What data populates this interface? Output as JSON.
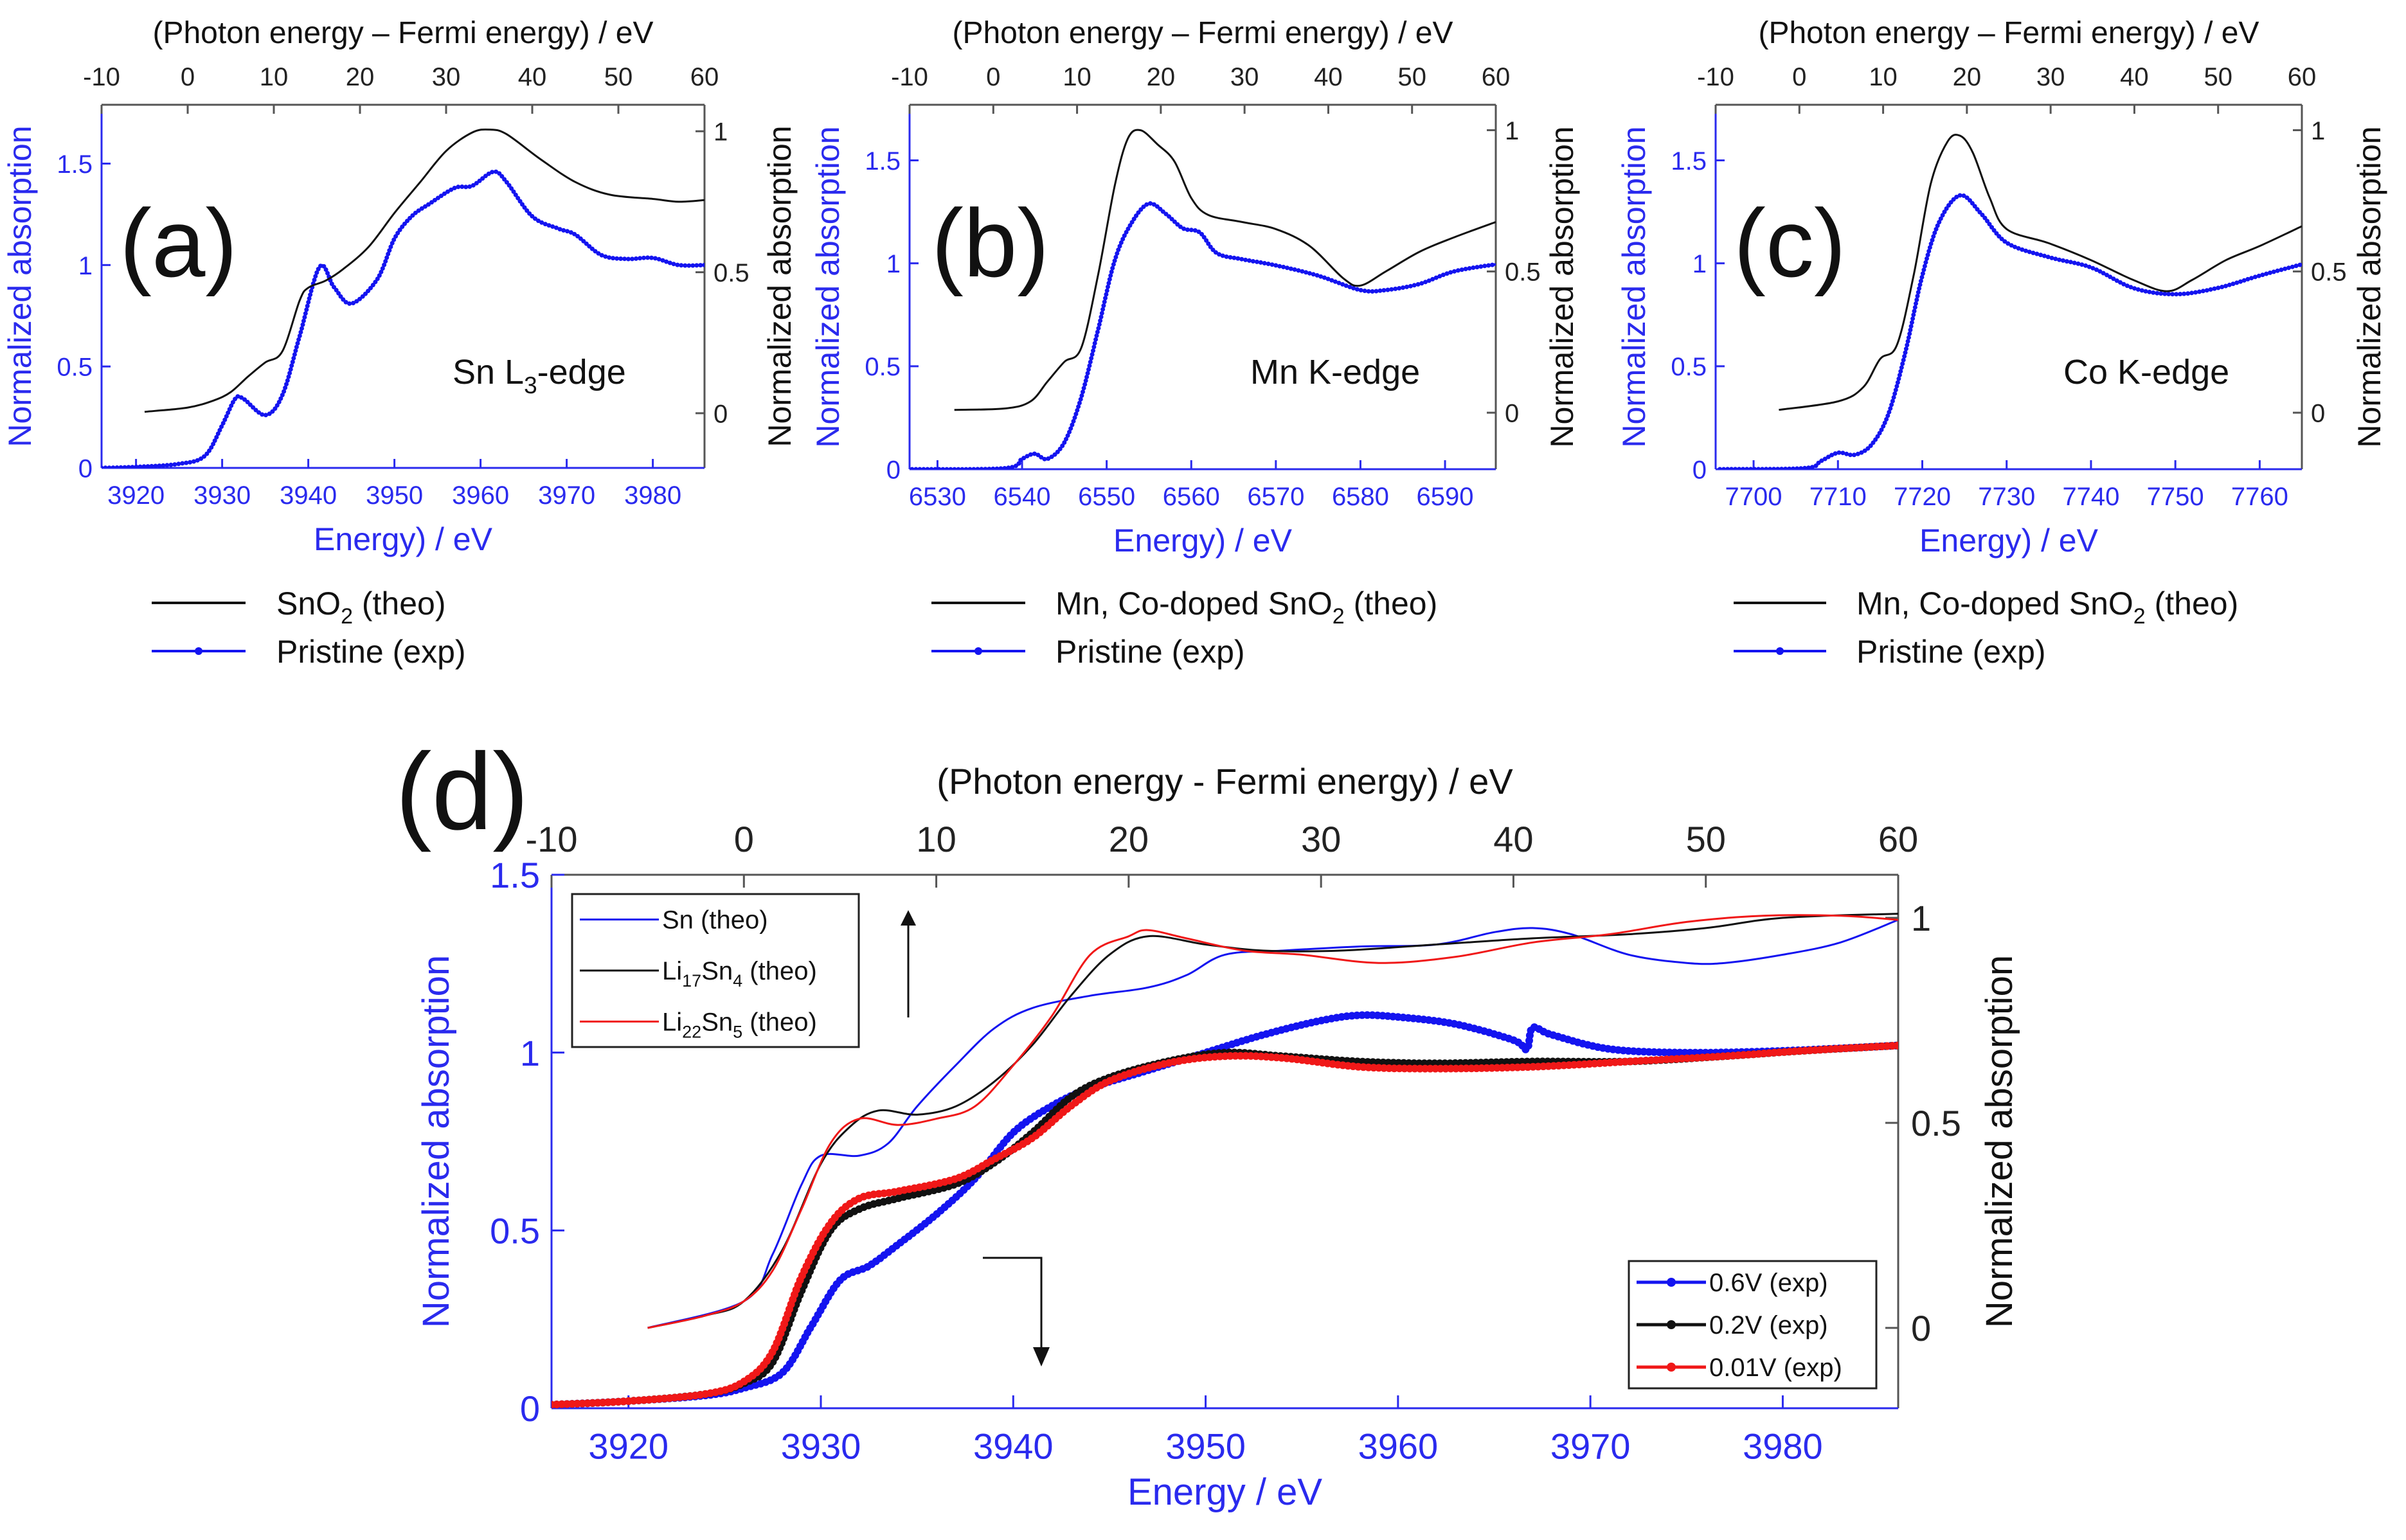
{
  "colors": {
    "blue": "#1414f0",
    "black": "#111111",
    "red": "#f01818",
    "axis_blue": "#2a2aee",
    "axis_gray": "#555555"
  },
  "chart_data": [
    {
      "id": "a",
      "type": "line",
      "panel_label": "(a)",
      "edge_label": [
        {
          "t": "Sn L"
        },
        {
          "t": "3",
          "sub": true
        },
        {
          "t": "-edge"
        }
      ],
      "top_axis": {
        "label": "(Photon energy – Fermi energy)  / eV",
        "range": [
          -10,
          60
        ],
        "ticks": [
          -10,
          0,
          10,
          20,
          30,
          40,
          50,
          60
        ]
      },
      "xlabel": "Energy) / eV",
      "xlim": [
        3916,
        3986
      ],
      "xticks": [
        3920,
        3930,
        3940,
        3950,
        3960,
        3970,
        3980
      ],
      "ylabel_left": "Normalized absorption",
      "ylim_left": [
        0,
        1.79
      ],
      "yticks_left": [
        0,
        0.5,
        1,
        1.5
      ],
      "ylabel_right": "Normalized absorption",
      "ylim_right": [
        -0.194,
        1.094
      ],
      "yticks_right": [
        0,
        0.5,
        1
      ],
      "legend_position": "below",
      "series": [
        {
          "name": [
            {
              "t": "SnO"
            },
            {
              "t": "2",
              "sub": true
            },
            {
              "t": " (theo)"
            }
          ],
          "axis": "right",
          "color": "#111111",
          "marker": false,
          "x": [
            3921,
            3926,
            3929,
            3931,
            3933,
            3935,
            3937,
            3939,
            3940,
            3942,
            3944,
            3947,
            3950,
            3953,
            3956,
            3959,
            3961,
            3963,
            3967,
            3971,
            3975,
            3980,
            3983,
            3986
          ],
          "y": [
            0.005,
            0.02,
            0.045,
            0.075,
            0.13,
            0.18,
            0.22,
            0.4,
            0.445,
            0.47,
            0.51,
            0.59,
            0.71,
            0.82,
            0.93,
            0.995,
            1.006,
            0.99,
            0.9,
            0.82,
            0.775,
            0.76,
            0.75,
            0.756
          ]
        },
        {
          "name": [
            {
              "t": "Pristine (exp)"
            }
          ],
          "axis": "left",
          "color": "#1414f0",
          "marker": true,
          "x": [
            3916,
            3920,
            3925,
            3928,
            3930,
            3931.5,
            3932.5,
            3935,
            3937,
            3939,
            3941.3,
            3943,
            3945,
            3948,
            3950,
            3952,
            3954,
            3957,
            3959,
            3961.5,
            3963,
            3966,
            3969,
            3971,
            3974,
            3977,
            3980,
            3983,
            3986
          ],
          "y": [
            0.0,
            0.005,
            0.02,
            0.06,
            0.21,
            0.34,
            0.34,
            0.26,
            0.36,
            0.65,
            0.99,
            0.89,
            0.81,
            0.93,
            1.13,
            1.24,
            1.3,
            1.38,
            1.39,
            1.46,
            1.41,
            1.24,
            1.18,
            1.15,
            1.05,
            1.03,
            1.035,
            1.0,
            1.0
          ]
        }
      ]
    },
    {
      "id": "b",
      "type": "line",
      "panel_label": "(b)",
      "edge_label": [
        {
          "t": "Mn K-edge"
        }
      ],
      "top_axis": {
        "label": "(Photon energy – Fermi energy)  / eV",
        "range": [
          -10,
          60
        ],
        "ticks": [
          -10,
          0,
          10,
          20,
          30,
          40,
          50,
          60
        ]
      },
      "xlabel": "Energy) / eV",
      "xlim": [
        6526.7,
        6596
      ],
      "xticks": [
        6530,
        6540,
        6550,
        6560,
        6570,
        6580,
        6590
      ],
      "ylabel_left": "Normalized absorption",
      "ylim_left": [
        0,
        1.77
      ],
      "yticks_left": [
        0,
        0.5,
        1,
        1.5
      ],
      "ylabel_right": "Normalized absorption",
      "ylim_right": [
        -0.2,
        1.09
      ],
      "yticks_right": [
        0,
        0.5,
        1
      ],
      "legend_position": "below",
      "series": [
        {
          "name": [
            {
              "t": "Mn, Co-doped SnO"
            },
            {
              "t": "2",
              "sub": true
            },
            {
              "t": " (theo)"
            }
          ],
          "axis": "right",
          "color": "#111111",
          "marker": false,
          "x": [
            6532,
            6538,
            6541,
            6543,
            6545,
            6547,
            6549,
            6551,
            6552.5,
            6554,
            6556,
            6558,
            6560,
            6562,
            6566,
            6570,
            6574,
            6578,
            6580,
            6583,
            6587,
            6591,
            6596
          ],
          "y": [
            0.01,
            0.015,
            0.04,
            0.11,
            0.18,
            0.23,
            0.49,
            0.81,
            0.97,
            1.0,
            0.95,
            0.89,
            0.76,
            0.7,
            0.675,
            0.65,
            0.59,
            0.475,
            0.45,
            0.5,
            0.57,
            0.62,
            0.675
          ]
        },
        {
          "name": [
            {
              "t": "Pristine (exp)"
            }
          ],
          "axis": "left",
          "color": "#1414f0",
          "marker": true,
          "x": [
            6527,
            6538,
            6540,
            6541.5,
            6543,
            6545,
            6547,
            6549,
            6551,
            6553,
            6555,
            6557,
            6559,
            6561,
            6563,
            6566,
            6570,
            6575,
            6580,
            6583,
            6587,
            6591,
            6596
          ],
          "y": [
            0.0,
            0.005,
            0.05,
            0.075,
            0.05,
            0.13,
            0.35,
            0.68,
            1.02,
            1.2,
            1.29,
            1.24,
            1.17,
            1.15,
            1.05,
            1.02,
            0.99,
            0.94,
            0.87,
            0.87,
            0.9,
            0.96,
            0.995
          ]
        }
      ]
    },
    {
      "id": "c",
      "type": "line",
      "panel_label": "(c)",
      "edge_label": [
        {
          "t": "Co K-edge"
        }
      ],
      "top_axis": {
        "label": "(Photon energy – Fermi energy)  / eV",
        "range": [
          -10,
          60
        ],
        "ticks": [
          -10,
          0,
          10,
          20,
          30,
          40,
          50,
          60
        ]
      },
      "xlabel": "Energy) / eV",
      "xlim": [
        7695.5,
        7765
      ],
      "xticks": [
        7700,
        7710,
        7720,
        7730,
        7740,
        7750,
        7760
      ],
      "ylabel_left": "Normalized absorption",
      "ylim_left": [
        0,
        1.77
      ],
      "yticks_left": [
        0,
        0.5,
        1,
        1.5
      ],
      "ylabel_right": "Normalized absorption",
      "ylim_right": [
        -0.2,
        1.09
      ],
      "yticks_right": [
        0,
        0.5,
        1
      ],
      "legend_position": "below",
      "series": [
        {
          "name": [
            {
              "t": "Mn, Co-doped SnO"
            },
            {
              "t": "2",
              "sub": true
            },
            {
              "t": " (theo)"
            }
          ],
          "axis": "right",
          "color": "#111111",
          "marker": false,
          "x": [
            7703,
            7710,
            7713,
            7715,
            7717,
            7719,
            7721,
            7723,
            7724.5,
            7726,
            7728,
            7730,
            7735,
            7740,
            7745,
            7749,
            7752,
            7756,
            7760,
            7765
          ],
          "y": [
            0.01,
            0.04,
            0.09,
            0.19,
            0.24,
            0.49,
            0.81,
            0.96,
            0.98,
            0.92,
            0.76,
            0.65,
            0.6,
            0.54,
            0.47,
            0.43,
            0.47,
            0.54,
            0.59,
            0.66
          ]
        },
        {
          "name": [
            {
              "t": "Pristine (exp)"
            }
          ],
          "axis": "left",
          "color": "#1414f0",
          "marker": true,
          "x": [
            7696,
            7706,
            7708,
            7710,
            7712,
            7714,
            7716,
            7718,
            7720,
            7722,
            7724.5,
            7727,
            7730,
            7735,
            7740,
            7745,
            7750,
            7755,
            7760,
            7765
          ],
          "y": [
            0.0,
            0.005,
            0.04,
            0.08,
            0.07,
            0.12,
            0.27,
            0.57,
            0.94,
            1.2,
            1.33,
            1.24,
            1.1,
            1.03,
            0.98,
            0.88,
            0.85,
            0.88,
            0.94,
            0.995
          ]
        }
      ]
    },
    {
      "id": "d",
      "type": "line",
      "panel_label": "(d)",
      "top_axis": {
        "label": "(Photon energy - Fermi energy) / eV",
        "range": [
          -10,
          60
        ],
        "ticks": [
          -10,
          0,
          10,
          20,
          30,
          40,
          50,
          60
        ]
      },
      "xlabel": "Energy / eV",
      "xlim": [
        3916,
        3986
      ],
      "xticks": [
        3920,
        3930,
        3940,
        3950,
        3960,
        3970,
        3980
      ],
      "ylabel_left": "Normalized absorption",
      "ylim_left": [
        0,
        1.5
      ],
      "yticks_left": [
        0,
        0.5,
        1,
        1.5
      ],
      "ylabel_right": "Normalized absorption",
      "ylim_right": [
        -0.196,
        1.105
      ],
      "yticks_right": [
        0,
        0.5,
        1
      ],
      "legend_position": "top-left (theo), bottom-right (exp)",
      "annotations": [
        "up-arrow (theo, right axis)",
        "down-arrow (exp, left axis)"
      ],
      "series": [
        {
          "name": [
            {
              "t": "Sn (theo)"
            }
          ],
          "axis": "right",
          "color": "#1414f0",
          "marker": false,
          "legend": "theo",
          "x": [
            3921,
            3926,
            3927.5,
            3929,
            3930,
            3932,
            3933.5,
            3935,
            3937,
            3939,
            3941,
            3944,
            3947,
            3949,
            3951,
            3954,
            3958,
            3962,
            3965,
            3967,
            3969,
            3972,
            3975,
            3977,
            3980,
            3983,
            3986
          ],
          "y": [
            0.0,
            0.065,
            0.18,
            0.35,
            0.42,
            0.42,
            0.45,
            0.54,
            0.64,
            0.73,
            0.78,
            0.81,
            0.83,
            0.86,
            0.91,
            0.92,
            0.93,
            0.935,
            0.965,
            0.975,
            0.96,
            0.91,
            0.89,
            0.89,
            0.91,
            0.94,
            0.995
          ]
        },
        {
          "name": [
            {
              "t": "Li"
            },
            {
              "t": "17",
              "sub": true
            },
            {
              "t": "Sn"
            },
            {
              "t": "4",
              "sub": true
            },
            {
              "t": " (theo)"
            }
          ],
          "axis": "right",
          "color": "#111111",
          "marker": false,
          "legend": "theo",
          "x": [
            3921,
            3924,
            3926,
            3928,
            3930,
            3931.5,
            3933,
            3935,
            3937,
            3939,
            3941,
            3943,
            3945,
            3947,
            3950,
            3953,
            3957,
            3962,
            3967,
            3972,
            3976,
            3980,
            3986
          ],
          "y": [
            0.0,
            0.03,
            0.065,
            0.19,
            0.4,
            0.49,
            0.53,
            0.52,
            0.54,
            0.6,
            0.69,
            0.81,
            0.91,
            0.955,
            0.935,
            0.92,
            0.92,
            0.935,
            0.95,
            0.96,
            0.975,
            1.0,
            1.01
          ]
        },
        {
          "name": [
            {
              "t": "Li"
            },
            {
              "t": "22",
              "sub": true
            },
            {
              "t": "Sn"
            },
            {
              "t": "5",
              "sub": true
            },
            {
              "t": " (theo)"
            }
          ],
          "axis": "right",
          "color": "#f01818",
          "marker": false,
          "legend": "theo",
          "x": [
            3921,
            3924,
            3926,
            3927.5,
            3929,
            3930.5,
            3932,
            3934,
            3936,
            3938,
            3940,
            3942,
            3944,
            3946,
            3947,
            3949,
            3952,
            3955,
            3959,
            3963,
            3967,
            3971,
            3975,
            3979,
            3983,
            3986
          ],
          "y": [
            0.0,
            0.03,
            0.065,
            0.14,
            0.29,
            0.45,
            0.51,
            0.495,
            0.51,
            0.54,
            0.64,
            0.76,
            0.91,
            0.955,
            0.97,
            0.95,
            0.92,
            0.91,
            0.89,
            0.905,
            0.94,
            0.96,
            0.99,
            1.005,
            1.005,
            0.995
          ]
        },
        {
          "name": [
            {
              "t": "0.6V (exp)"
            }
          ],
          "axis": "left",
          "color": "#1414f0",
          "marker": true,
          "legend": "exp",
          "x": [
            3916,
            3920,
            3924,
            3926,
            3928,
            3929.5,
            3931,
            3932.5,
            3934,
            3936,
            3938,
            3940,
            3942,
            3944,
            3947,
            3950,
            3953,
            3956,
            3958,
            3960,
            3963,
            3966,
            3966.7,
            3967,
            3968,
            3971,
            3975,
            3980,
            3986
          ],
          "y": [
            0.01,
            0.02,
            0.036,
            0.057,
            0.1,
            0.23,
            0.36,
            0.4,
            0.46,
            0.545,
            0.645,
            0.775,
            0.85,
            0.9,
            0.95,
            1.0,
            1.05,
            1.09,
            1.105,
            1.1,
            1.08,
            1.035,
            1.01,
            1.07,
            1.05,
            1.01,
            1.0,
            1.005,
            1.02
          ]
        },
        {
          "name": [
            {
              "t": "0.2V (exp)"
            }
          ],
          "axis": "left",
          "color": "#111111",
          "marker": true,
          "legend": "exp",
          "x": [
            3916,
            3920,
            3924,
            3926,
            3927.5,
            3929,
            3930.5,
            3932,
            3934,
            3937,
            3939,
            3941,
            3943,
            3945,
            3948,
            3951,
            3954,
            3958,
            3962,
            3967,
            3972,
            3977,
            3981,
            3986
          ],
          "y": [
            0.01,
            0.02,
            0.04,
            0.07,
            0.13,
            0.33,
            0.5,
            0.56,
            0.59,
            0.63,
            0.69,
            0.775,
            0.875,
            0.93,
            0.975,
            1.0,
            0.99,
            0.975,
            0.97,
            0.975,
            0.975,
            0.99,
            1.005,
            1.02
          ]
        },
        {
          "name": [
            {
              "t": "0.01V (exp)"
            }
          ],
          "axis": "left",
          "color": "#f01818",
          "marker": true,
          "legend": "exp",
          "x": [
            3916,
            3920,
            3924,
            3926,
            3927.5,
            3929,
            3930.5,
            3932,
            3934,
            3937,
            3939,
            3941,
            3943,
            3945,
            3948,
            3951,
            3954,
            3958,
            3962,
            3967,
            3972,
            3977,
            3981,
            3986
          ],
          "y": [
            0.01,
            0.02,
            0.04,
            0.075,
            0.16,
            0.37,
            0.52,
            0.59,
            0.61,
            0.645,
            0.7,
            0.76,
            0.85,
            0.92,
            0.97,
            0.99,
            0.985,
            0.96,
            0.955,
            0.96,
            0.975,
            0.99,
            1.005,
            1.02
          ]
        }
      ]
    }
  ]
}
